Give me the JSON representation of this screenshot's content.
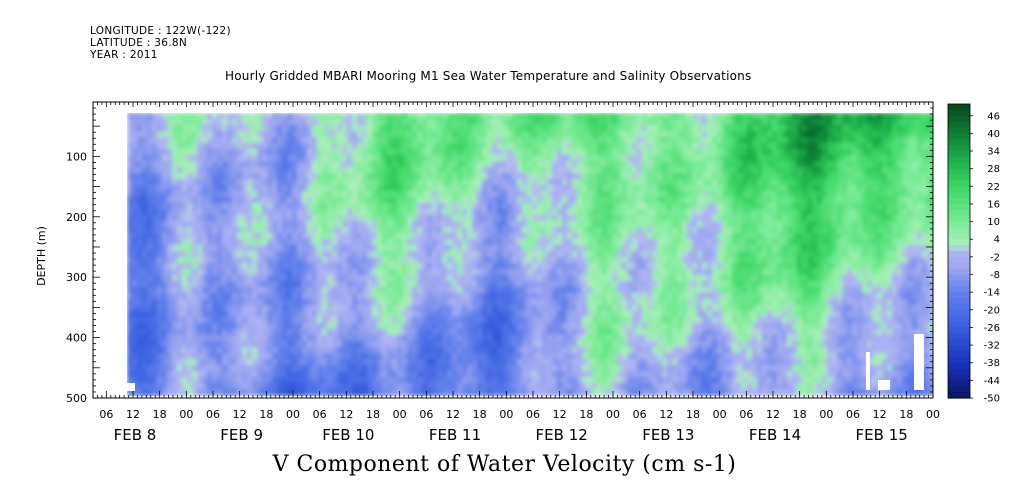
{
  "header": {
    "longitude": "LONGITUDE : 122W(-122)",
    "latitude": "LATITUDE : 36.8N",
    "year": "YEAR : 2011"
  },
  "chart_data": {
    "type": "heatmap",
    "title": "Hourly Gridded MBARI Mooring M1 Sea Water Temperature and Salinity Observations",
    "xlabel": "V Component of Water Velocity (cm s-1)",
    "ylabel": "DEPTH (m)",
    "ylim": [
      500,
      10
    ],
    "y_ticks": [
      100,
      200,
      300,
      400,
      500
    ],
    "x_hour_ticks": [
      "06",
      "12",
      "18",
      "00",
      "06",
      "12",
      "18",
      "00",
      "06",
      "12",
      "18",
      "00",
      "06",
      "12",
      "18",
      "00",
      "06",
      "12",
      "18",
      "00",
      "06",
      "12",
      "18",
      "00",
      "06",
      "12",
      "18",
      "00",
      "06",
      "12",
      "18",
      "00"
    ],
    "x_day_labels": [
      "FEB  8",
      "FEB  9",
      "FEB 10",
      "FEB 11",
      "FEB 12",
      "FEB 13",
      "FEB 14",
      "FEB 15"
    ],
    "colorbar": {
      "labels": [
        "46",
        "40",
        "34",
        "28",
        "22",
        "16",
        "10",
        "4",
        "-2",
        "-8",
        "-14",
        "-20",
        "-26",
        "-32",
        "-38",
        "-44",
        "-50"
      ],
      "range": [
        -50,
        50
      ]
    },
    "colors": {
      "strong_negative": "#0b1a7a",
      "negative": "#4f78e6",
      "weak_negative": "#a8aef0",
      "weak_positive": "#96f0a8",
      "positive": "#36d96a",
      "strong_positive": "#064d22"
    }
  }
}
